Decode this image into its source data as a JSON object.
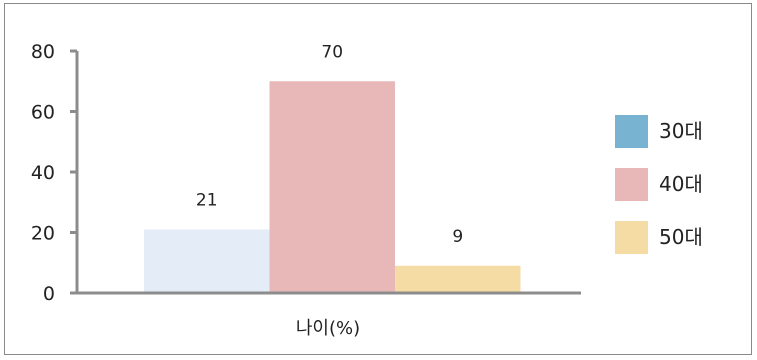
{
  "chart_data": {
    "type": "bar",
    "title": "",
    "xlabel": "나이(%)",
    "ylabel": "",
    "categories": [
      "나이(%)"
    ],
    "series": [
      {
        "name": "30대",
        "values": [
          21
        ],
        "color": "#E4ECF7",
        "legend_color": "#78B4D2"
      },
      {
        "name": "40대",
        "values": [
          70
        ],
        "color": "#E8B8B8",
        "legend_color": "#E8B8B8"
      },
      {
        "name": "50대",
        "values": [
          9
        ],
        "color": "#F5DCA4",
        "legend_color": "#F5DCA4"
      }
    ],
    "ylim": [
      0,
      80
    ],
    "yticks": [
      "0",
      "20",
      "40",
      "60",
      "80"
    ],
    "data_labels": [
      "21",
      "70",
      "9"
    ],
    "grid": false,
    "legend_position": "right"
  }
}
